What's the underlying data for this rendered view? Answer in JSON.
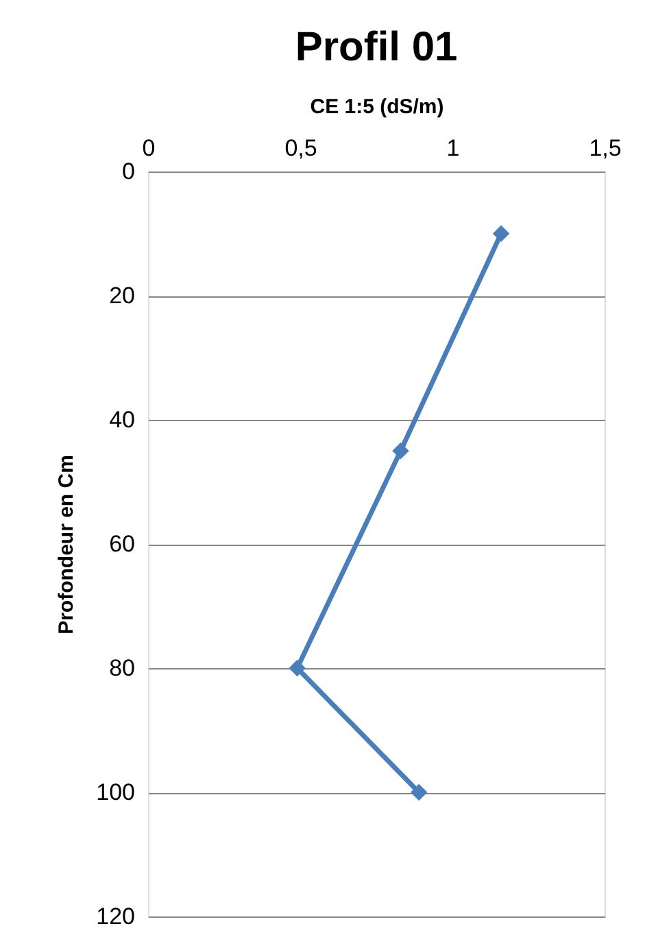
{
  "chart_data": {
    "type": "line",
    "title": "Profil 01",
    "xlabel": "CE 1:5 (dS/m)",
    "ylabel": "Profondeur en Cm",
    "x": [
      1.16,
      0.83,
      0.49,
      0.89
    ],
    "series": [
      {
        "color": "#4a7ebb",
        "values": [
          10,
          45,
          80,
          100
        ]
      }
    ],
    "xlim": [
      0,
      1.5
    ],
    "xticks": [
      0,
      {
        "value": 0.5,
        "label": "0,5"
      },
      1,
      {
        "value": 1.5,
        "label": "1,5"
      }
    ],
    "ylim": [
      120,
      0
    ],
    "yticks": [
      0,
      20,
      40,
      60,
      80,
      100,
      120
    ],
    "grid": "y",
    "marker": "diamond",
    "line_style": "solid"
  }
}
